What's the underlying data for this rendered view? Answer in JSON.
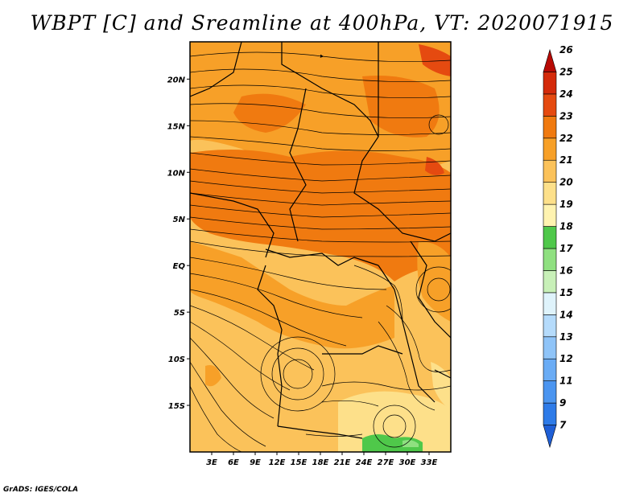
{
  "title": "WBPT [C] and Sreamline at 400hPa, VT: 2020071915",
  "credit": "GrADS: IGES/COLA",
  "map": {
    "lon_range": [
      0,
      36
    ],
    "lat_range": [
      -20,
      24
    ],
    "lat_ticks": [
      {
        "value": 20,
        "label": "20N"
      },
      {
        "value": 15,
        "label": "15N"
      },
      {
        "value": 10,
        "label": "10N"
      },
      {
        "value": 5,
        "label": "5N"
      },
      {
        "value": 0,
        "label": "EQ"
      },
      {
        "value": -5,
        "label": "5S"
      },
      {
        "value": -10,
        "label": "10S"
      },
      {
        "value": -15,
        "label": "15S"
      }
    ],
    "lon_ticks": [
      {
        "value": 3,
        "label": "3E"
      },
      {
        "value": 6,
        "label": "6E"
      },
      {
        "value": 9,
        "label": "9E"
      },
      {
        "value": 12,
        "label": "12E"
      },
      {
        "value": 15,
        "label": "15E"
      },
      {
        "value": 18,
        "label": "18E"
      },
      {
        "value": 21,
        "label": "21E"
      },
      {
        "value": 24,
        "label": "24E"
      },
      {
        "value": 27,
        "label": "27E"
      },
      {
        "value": 30,
        "label": "30E"
      },
      {
        "value": 33,
        "label": "33E"
      }
    ]
  },
  "colorbar": {
    "levels": [
      "7",
      "9",
      "11",
      "12",
      "13",
      "14",
      "15",
      "16",
      "17",
      "18",
      "19",
      "20",
      "21",
      "22",
      "23",
      "24",
      "25",
      "26"
    ],
    "colors": [
      "#1f5fd6",
      "#2e7be8",
      "#4b95f0",
      "#6aacf5",
      "#8fc4f8",
      "#b5dbfb",
      "#dff3fb",
      "#c8f0b8",
      "#8fe080",
      "#4fc84a",
      "#fff3b0",
      "#fde08a",
      "#fbc25a",
      "#f7a028",
      "#f07a10",
      "#e54a10",
      "#d42a0a",
      "#b80a05"
    ]
  },
  "fields": {
    "wbpt_background": "#fbc25a",
    "wbpt_warm": "#f7a028",
    "wbpt_hot": "#f07a10",
    "wbpt_cool": "#fde08a",
    "wbpt_cold": "#4fc84a"
  }
}
